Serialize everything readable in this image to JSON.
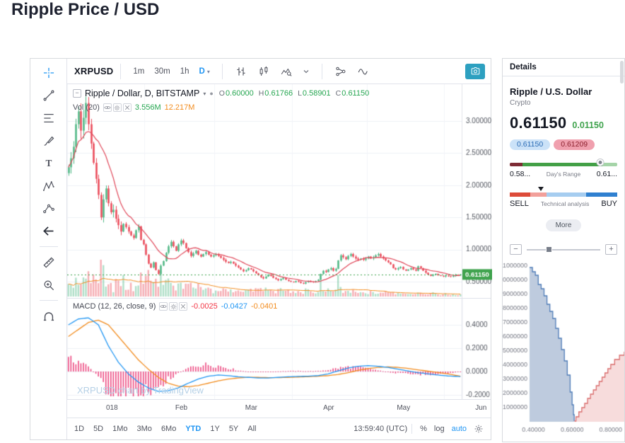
{
  "page": {
    "title": "Ripple Price / USD"
  },
  "chart_widget": {
    "toolbar": {
      "symbol": "XRPUSD",
      "intervals": [
        "1m",
        "30m",
        "1h",
        "D"
      ],
      "active_interval": "D",
      "icons": [
        "ohlc-style-icon",
        "candlestick-style-icon",
        "area-style-icon",
        "style-caret-icon",
        "compare-icon",
        "line-style-icon"
      ]
    },
    "left_tools": [
      "crosshair-icon",
      "trend-line-icon",
      "fib-icon",
      "brush-icon",
      "text-icon",
      "xabcd-icon",
      "forecast-icon",
      "arrow-left-icon",
      "ruler-icon",
      "zoom-in-icon",
      "magnet-icon"
    ],
    "legend": {
      "title": "Ripple / Dollar, D, BITSTAMP",
      "open_label": "O",
      "open": "0.60000",
      "high_label": "H",
      "high": "0.61766",
      "low_label": "L",
      "low": "0.58901",
      "close_label": "C",
      "close": "0.61150"
    },
    "volume_legend": {
      "label": "Vol (20)",
      "value": "3.556M",
      "ma_value": "12.217M"
    },
    "macd_legend": {
      "label": "MACD (12, 26, close, 9)",
      "hist": "-0.0025",
      "macd": "-0.0427",
      "signal": "-0.0401"
    },
    "watermark": "XRPUSD chart by TradingView",
    "bottom_bar": {
      "ranges": [
        "1D",
        "5D",
        "1Mo",
        "3Mo",
        "6Mo",
        "YTD",
        "1Y",
        "5Y",
        "All"
      ],
      "active_range": "YTD",
      "clock": "13:59:40 (UTC)",
      "percent_label": "%",
      "log_label": "log",
      "auto_label": "auto"
    }
  },
  "details_panel": {
    "header": "Details",
    "name": "Ripple / U.S. Dollar",
    "category": "Crypto",
    "price": "0.61150",
    "change": "0.01150",
    "bid": "0.61150",
    "ask": "0.61209",
    "day_range": {
      "low": "0.58...",
      "label": "Day's Range",
      "high": "0.61..."
    },
    "gauge": {
      "sell": "SELL",
      "label": "Technical analysis",
      "buy": "BUY"
    },
    "more_label": "More",
    "zoom": {
      "out_label": "−",
      "in_label": "+"
    }
  },
  "chart_data": [
    {
      "id": "price",
      "type": "candlestick",
      "symbol": "XRPUSD",
      "exchange": "BITSTAMP",
      "interval": "D",
      "y_ticks": [
        "3.00000",
        "2.50000",
        "2.00000",
        "1.50000",
        "1.00000",
        "0.50000"
      ],
      "y_tick_values": [
        3.0,
        2.5,
        2.0,
        1.5,
        1.0,
        0.5
      ],
      "current_price": 0.6115,
      "current_price_label": "0.61150",
      "x_ticks": [
        {
          "label": "018",
          "day": 0
        },
        {
          "label": "Feb",
          "day": 31
        },
        {
          "label": "Mar",
          "day": 59
        },
        {
          "label": "Apr",
          "day": 90
        },
        {
          "label": "May",
          "day": 120
        },
        {
          "label": "Jun",
          "day": 151
        }
      ],
      "closes": [
        2.28,
        2.42,
        2.6,
        2.95,
        3.15,
        2.85,
        3.05,
        3.28,
        2.95,
        2.65,
        2.35,
        2.1,
        1.85,
        1.5,
        1.78,
        1.95,
        1.72,
        1.58,
        1.62,
        1.48,
        1.38,
        1.28,
        1.4,
        1.35,
        1.28,
        1.22,
        1.18,
        1.3,
        1.36,
        1.15,
        1.08,
        0.92,
        0.78,
        0.72,
        0.8,
        0.68,
        0.62,
        0.75,
        0.82,
        0.95,
        1.05,
        1.12,
        1.05,
        0.98,
        1.08,
        1.14,
        1.1,
        1.02,
        0.96,
        0.9,
        0.94,
        0.98,
        0.92,
        0.89,
        0.93,
        0.96,
        0.92,
        0.89,
        0.91,
        0.93,
        0.9,
        0.87,
        0.84,
        0.81,
        0.79,
        0.81,
        0.78,
        0.75,
        0.72,
        0.69,
        0.66,
        0.68,
        0.71,
        0.69,
        0.66,
        0.63,
        0.6,
        0.57,
        0.55,
        0.58,
        0.61,
        0.59,
        0.56,
        0.54,
        0.52,
        0.54,
        0.56,
        0.53,
        0.51,
        0.5,
        0.49,
        0.51,
        0.5,
        0.48,
        0.47,
        0.49,
        0.51,
        0.5,
        0.49,
        0.51,
        0.53,
        0.62,
        0.67,
        0.65,
        0.69,
        0.71,
        0.67,
        0.7,
        0.83,
        0.91,
        0.88,
        0.85,
        0.9,
        0.93,
        0.89,
        0.86,
        0.84,
        0.86,
        0.84,
        0.86,
        0.89,
        0.86,
        0.88,
        0.91,
        0.93,
        0.89,
        0.86,
        0.83,
        0.8,
        0.77,
        0.71,
        0.69,
        0.71,
        0.73,
        0.69,
        0.67,
        0.69,
        0.71,
        0.69,
        0.67,
        0.74,
        0.71,
        0.67,
        0.64,
        0.61,
        0.59,
        0.61,
        0.62,
        0.6,
        0.59,
        0.58,
        0.595,
        0.585,
        0.575,
        0.592,
        0.605,
        0.598,
        0.6115
      ]
    },
    {
      "id": "macd",
      "type": "macd",
      "params": "12, 26, close, 9",
      "y_ticks": [
        "0.4000",
        "0.2000",
        "0.0000",
        "-0.2000"
      ],
      "y_tick_values": [
        0.4,
        0.2,
        0.0,
        -0.2
      ],
      "last_values": {
        "histogram": -0.0025,
        "macd": -0.0427,
        "signal": -0.0401
      },
      "points": [
        [
          0,
          0.4,
          0.3
        ],
        [
          4,
          0.45,
          0.36
        ],
        [
          8,
          0.46,
          0.42
        ],
        [
          12,
          0.4,
          0.44
        ],
        [
          16,
          0.22,
          0.4
        ],
        [
          20,
          0.08,
          0.3
        ],
        [
          24,
          -0.02,
          0.2
        ],
        [
          28,
          -0.09,
          0.1
        ],
        [
          32,
          -0.14,
          0.02
        ],
        [
          36,
          -0.17,
          -0.05
        ],
        [
          40,
          -0.165,
          -0.1
        ],
        [
          44,
          -0.14,
          -0.125
        ],
        [
          48,
          -0.1,
          -0.13
        ],
        [
          52,
          -0.065,
          -0.12
        ],
        [
          56,
          -0.04,
          -0.1
        ],
        [
          60,
          -0.03,
          -0.08
        ],
        [
          64,
          -0.035,
          -0.065
        ],
        [
          68,
          -0.045,
          -0.055
        ],
        [
          72,
          -0.05,
          -0.05
        ],
        [
          76,
          -0.055,
          -0.05
        ],
        [
          80,
          -0.055,
          -0.052
        ],
        [
          84,
          -0.05,
          -0.052
        ],
        [
          88,
          -0.045,
          -0.05
        ],
        [
          92,
          -0.042,
          -0.047
        ],
        [
          96,
          -0.04,
          -0.044
        ],
        [
          100,
          -0.035,
          -0.04
        ],
        [
          104,
          -0.02,
          -0.035
        ],
        [
          108,
          0.005,
          -0.025
        ],
        [
          112,
          0.03,
          -0.01
        ],
        [
          116,
          0.045,
          0.01
        ],
        [
          120,
          0.05,
          0.025
        ],
        [
          124,
          0.045,
          0.035
        ],
        [
          128,
          0.035,
          0.04
        ],
        [
          132,
          0.02,
          0.035
        ],
        [
          136,
          0.005,
          0.027
        ],
        [
          140,
          -0.01,
          0.015
        ],
        [
          144,
          -0.02,
          0.003
        ],
        [
          148,
          -0.03,
          -0.008
        ],
        [
          152,
          -0.038,
          -0.02
        ],
        [
          157,
          -0.0427,
          -0.0401
        ]
      ]
    },
    {
      "id": "depth",
      "type": "depth",
      "y_ticks": [
        "11000000",
        "10000000",
        "9000000",
        "8000000",
        "7000000",
        "6000000",
        "5000000",
        "4000000",
        "3000000",
        "2000000",
        "1000000"
      ],
      "y_tick_values_millions": [
        11,
        10,
        9,
        8,
        7,
        6,
        5,
        4,
        3,
        2,
        1
      ],
      "x_ticks": [
        "0.40000",
        "0.60000",
        "0.80000"
      ],
      "x_tick_values": [
        0.4,
        0.6,
        0.8
      ],
      "price_domain": [
        0.38,
        0.87
      ],
      "bids_millions": [
        [
          0.38,
          10.9
        ],
        [
          0.395,
          10.6
        ],
        [
          0.41,
          10.35
        ],
        [
          0.425,
          9.7
        ],
        [
          0.44,
          9.4
        ],
        [
          0.455,
          8.9
        ],
        [
          0.47,
          8.3
        ],
        [
          0.485,
          7.8
        ],
        [
          0.5,
          7.3
        ],
        [
          0.515,
          6.6
        ],
        [
          0.53,
          5.9
        ],
        [
          0.545,
          5.1
        ],
        [
          0.56,
          4.3
        ],
        [
          0.575,
          3.3
        ],
        [
          0.59,
          2.1
        ],
        [
          0.6,
          1.2
        ],
        [
          0.607,
          0.5
        ],
        [
          0.611,
          0.05
        ]
      ],
      "asks_millions": [
        [
          0.612,
          0.05
        ],
        [
          0.62,
          0.35
        ],
        [
          0.635,
          0.7
        ],
        [
          0.65,
          1.0
        ],
        [
          0.665,
          1.3
        ],
        [
          0.68,
          1.65
        ],
        [
          0.695,
          1.95
        ],
        [
          0.71,
          2.25
        ],
        [
          0.725,
          2.55
        ],
        [
          0.74,
          2.85
        ],
        [
          0.755,
          3.15
        ],
        [
          0.77,
          3.45
        ],
        [
          0.785,
          3.75
        ],
        [
          0.8,
          4.05
        ],
        [
          0.82,
          4.4
        ],
        [
          0.845,
          4.7
        ],
        [
          0.87,
          4.95
        ]
      ]
    }
  ]
}
